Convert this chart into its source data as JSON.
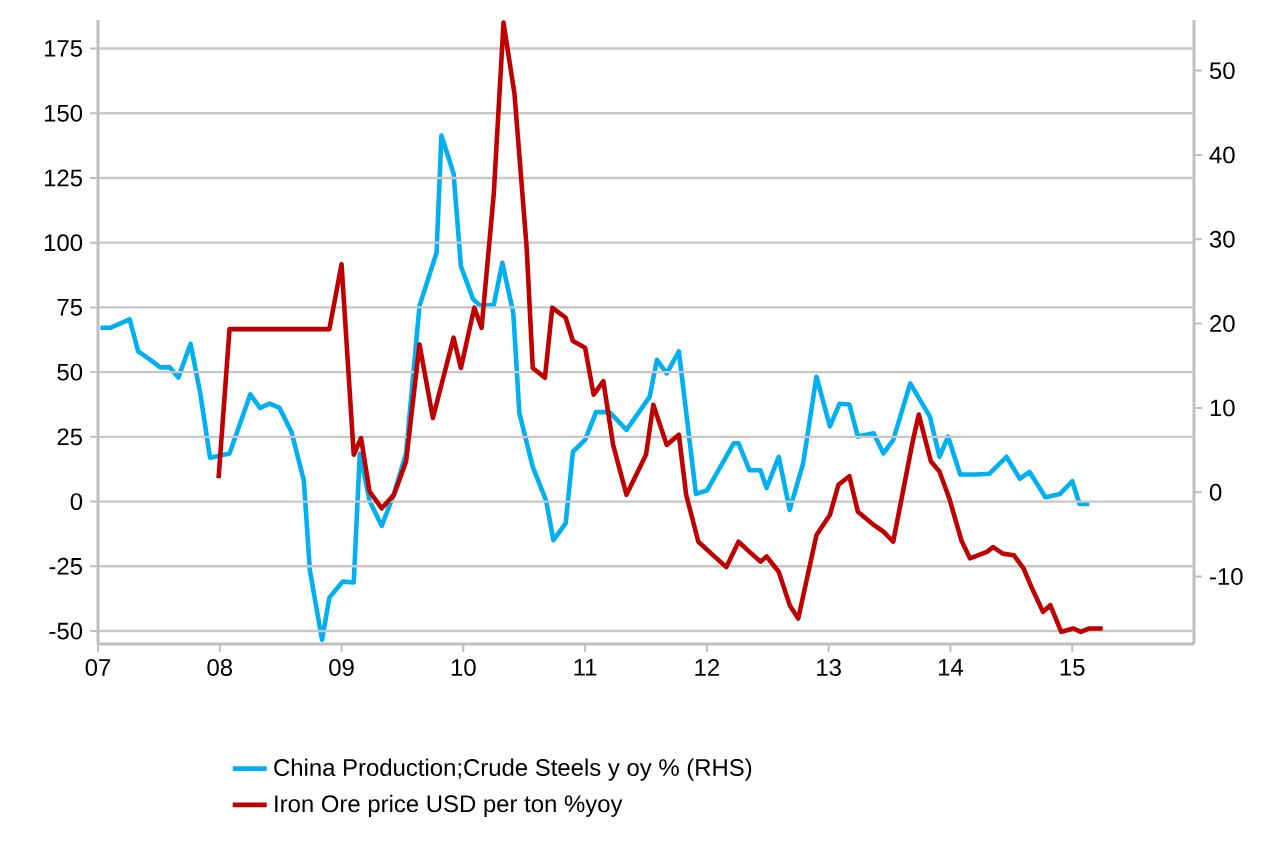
{
  "chart_data": {
    "type": "line",
    "xlim": [
      2007,
      2016
    ],
    "xticks": [
      {
        "value": 2007,
        "label": "07"
      },
      {
        "value": 2008,
        "label": "08"
      },
      {
        "value": 2009,
        "label": "09"
      },
      {
        "value": 2010,
        "label": "10"
      },
      {
        "value": 2011,
        "label": "11"
      },
      {
        "value": 2012,
        "label": "12"
      },
      {
        "value": 2013,
        "label": "13"
      },
      {
        "value": 2014,
        "label": "14"
      },
      {
        "value": 2015,
        "label": "15"
      }
    ],
    "ylim": [
      -55,
      186
    ],
    "yticks": [
      -50,
      -25,
      0,
      25,
      50,
      75,
      100,
      125,
      150,
      175
    ],
    "y2lim": [
      -18,
      56
    ],
    "y2ticks": [
      -10,
      0,
      10,
      20,
      30,
      40,
      50
    ],
    "grid": "y",
    "legend": "bottom",
    "series": [
      {
        "name": "China Production;Crude Steels y oy % (RHS)",
        "color": "#00b0f0",
        "axis": "y2",
        "x": [
          2007.02,
          2007.1,
          2007.26,
          2007.33,
          2007.43,
          2007.51,
          2007.59,
          2007.66,
          2007.76,
          2007.84,
          2007.92,
          2008.08,
          2008.25,
          2008.33,
          2008.41,
          2008.49,
          2008.59,
          2008.69,
          2008.74,
          2008.84,
          2008.9,
          2009.01,
          2009.1,
          2009.15,
          2009.23,
          2009.33,
          2009.43,
          2009.53,
          2009.64,
          2009.78,
          2009.82,
          2009.92,
          2009.98,
          2010.08,
          2010.14,
          2010.25,
          2010.32,
          2010.41,
          2010.46,
          2010.57,
          2010.68,
          2010.74,
          2010.84,
          2010.9,
          2011.0,
          2011.09,
          2011.2,
          2011.34,
          2011.53,
          2011.59,
          2011.67,
          2011.77,
          2011.91,
          2012.0,
          2012.11,
          2012.22,
          2012.26,
          2012.35,
          2012.44,
          2012.49,
          2012.59,
          2012.68,
          2012.79,
          2012.9,
          2013.01,
          2013.09,
          2013.17,
          2013.24,
          2013.37,
          2013.45,
          2013.53,
          2013.67,
          2013.83,
          2013.91,
          2013.98,
          2014.08,
          2014.21,
          2014.32,
          2014.46,
          2014.57,
          2014.65,
          2014.78,
          2014.9,
          2015.0,
          2015.06,
          2015.14
        ],
        "values": [
          19.5,
          19.5,
          20.5,
          16.7,
          15.7,
          14.8,
          14.8,
          13.6,
          17.6,
          11.7,
          4.1,
          4.6,
          11.6,
          10.0,
          10.5,
          10.0,
          7.1,
          1.4,
          -9.3,
          -17.5,
          -12.5,
          -10.6,
          -10.7,
          4.6,
          -1.0,
          -4.0,
          -0.2,
          4.6,
          22.1,
          28.4,
          42.3,
          37.8,
          26.8,
          22.9,
          22.1,
          22.2,
          27.2,
          21.3,
          9.4,
          3.0,
          -1.0,
          -5.7,
          -3.7,
          4.8,
          6.2,
          9.5,
          9.5,
          7.4,
          11.3,
          15.7,
          14.1,
          16.7,
          -0.2,
          0.2,
          3.0,
          5.8,
          5.8,
          2.6,
          2.6,
          0.5,
          4.2,
          -2.1,
          3.4,
          13.7,
          7.8,
          10.5,
          10.4,
          6.6,
          7.0,
          4.6,
          6.2,
          12.9,
          9.0,
          4.2,
          6.6,
          2.1,
          2.1,
          2.2,
          4.2,
          1.6,
          2.4,
          -0.6,
          -0.2,
          1.3,
          -1.4,
          -1.4
        ]
      },
      {
        "name": "Iron Ore price USD per ton %yoy",
        "color": "#c00000",
        "x": [
          2007.99,
          2008.08,
          2008.9,
          2009.0,
          2009.1,
          2009.16,
          2009.23,
          2009.33,
          2009.43,
          2009.53,
          2009.64,
          2009.75,
          2009.92,
          2009.98,
          2010.09,
          2010.15,
          2010.25,
          2010.33,
          2010.42,
          2010.52,
          2010.57,
          2010.67,
          2010.73,
          2010.84,
          2010.9,
          2011.0,
          2011.07,
          2011.15,
          2011.23,
          2011.34,
          2011.5,
          2011.56,
          2011.67,
          2011.77,
          2011.83,
          2011.93,
          2012.05,
          2012.16,
          2012.26,
          2012.35,
          2012.44,
          2012.49,
          2012.59,
          2012.68,
          2012.75,
          2012.9,
          2013.01,
          2013.08,
          2013.17,
          2013.24,
          2013.37,
          2013.45,
          2013.53,
          2013.69,
          2013.74,
          2013.84,
          2013.91,
          2013.99,
          2014.09,
          2014.16,
          2014.3,
          2014.35,
          2014.43,
          2014.52,
          2014.6,
          2014.67,
          2014.76,
          2014.82,
          2014.91,
          2015.01,
          2015.07,
          2015.14,
          2015.25
        ],
        "values": [
          9.0,
          66.6,
          66.6,
          91.7,
          18.1,
          24.5,
          3.9,
          -2.6,
          2.6,
          15.5,
          60.7,
          32.3,
          63.3,
          51.6,
          74.9,
          67.1,
          118.8,
          185,
          157.5,
          98.1,
          51.6,
          47.8,
          74.9,
          71.0,
          62.0,
          59.4,
          41.3,
          46.5,
          21.9,
          2.6,
          18.1,
          37.4,
          21.9,
          25.8,
          2.6,
          -15.5,
          -20.7,
          -25.3,
          -15.5,
          -19.4,
          -23.2,
          -21.2,
          -27.1,
          -40.0,
          -45.2,
          -12.9,
          -5.2,
          6.5,
          9.8,
          -3.9,
          -9.0,
          -11.6,
          -15.5,
          23.2,
          33.6,
          15.5,
          11.6,
          1.3,
          -15.0,
          -21.9,
          -19.4,
          -17.6,
          -20.1,
          -20.7,
          -25.8,
          -33.5,
          -42.6,
          -40.0,
          -50.3,
          -49.0,
          -50.3,
          -49.0,
          -49.0
        ]
      }
    ]
  }
}
